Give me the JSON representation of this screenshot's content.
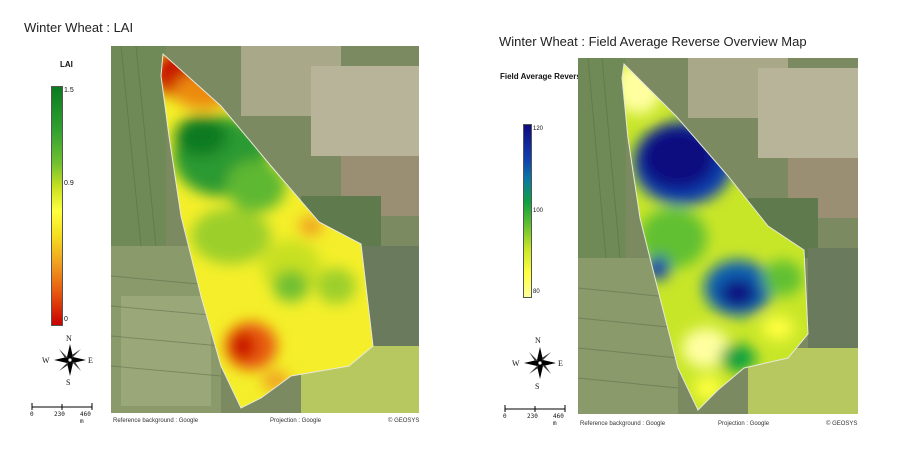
{
  "panels": [
    {
      "title": "Winter Wheat : LAI",
      "legend": {
        "title": "LAI",
        "ticks": [
          {
            "label": "1.5",
            "value": 1.5
          },
          {
            "label": "0.9",
            "value": 0.9
          },
          {
            "label": "0",
            "value": 0
          }
        ],
        "range": [
          0,
          1.5
        ],
        "colors": [
          "#c80000",
          "#e85a10",
          "#f0a020",
          "#f5e020",
          "#ffff40",
          "#c8e020",
          "#70c030",
          "#30a030",
          "#0a7a20"
        ]
      },
      "compass": {
        "n": "N",
        "s": "S",
        "e": "E",
        "w": "W"
      },
      "scale": {
        "labels": [
          "0",
          "230",
          "460 m"
        ]
      },
      "footer": {
        "left": "Reference background : Google",
        "center": "Projection : Google",
        "right": "© GEOSYS"
      }
    },
    {
      "title": "Winter Wheat : Field Average Reverse Overview Map",
      "legend": {
        "title": "Field Average Reverse",
        "ticks": [
          {
            "label": "120",
            "value": 120
          },
          {
            "label": "100",
            "value": 100
          },
          {
            "label": "80",
            "value": 80
          }
        ],
        "range": [
          80,
          120
        ],
        "colors": [
          "#ffffa0",
          "#ffff40",
          "#c8e628",
          "#60c030",
          "#10a040",
          "#0a7aa0",
          "#1040b0",
          "#100a80"
        ]
      },
      "compass": {
        "n": "N",
        "s": "S",
        "e": "E",
        "w": "W"
      },
      "scale": {
        "labels": [
          "0",
          "230",
          "460 m"
        ]
      },
      "footer": {
        "left": "Reference background : Google",
        "center": "Projection : Google",
        "right": "© GEOSYS"
      }
    }
  ]
}
